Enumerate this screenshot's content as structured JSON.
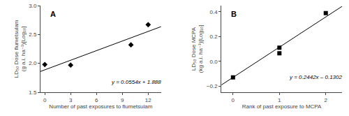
{
  "chart_data": [
    {
      "type": "scatter",
      "title": "A",
      "x_label": "Number of past exposures to flumetsulam",
      "y_label": "LD₅₀ Dose flumetsulam\n(g a.i. ha⁻¹)[Log₁₀]",
      "xlim": [
        -0.5,
        13.5
      ],
      "ylim": [
        1.5,
        3.0
      ],
      "xticks": [
        0,
        3,
        6,
        9,
        12
      ],
      "yticks": [
        1.5,
        {
          "value": 2.0,
          "label": "2.0"
        },
        2.5,
        {
          "value": 3.0,
          "label": "3.0"
        }
      ],
      "grid": false,
      "series": [
        {
          "type": "line",
          "line_style": "solid",
          "color": "#000000",
          "x": [
            -0.5,
            13.5
          ],
          "values": [
            1.8603,
            2.6359
          ]
        },
        {
          "type": "scatter",
          "marker": "diamond",
          "color": "#000000",
          "x": [
            0,
            3,
            10,
            12
          ],
          "values": [
            1.98,
            1.97,
            2.32,
            2.67
          ]
        }
      ],
      "annotations": [
        {
          "text": "y = 0.0554x + 1.888",
          "x": 7.5,
          "y": 1.76
        }
      ]
    },
    {
      "type": "scatter",
      "title": "B",
      "x_label": "Rank of past exposure to MCPA",
      "y_label": "LD₅₀ Dose MCPA\n(kg a.i. ha⁻¹)[Log₁₀]",
      "xlim": [
        -0.25,
        2.35
      ],
      "ylim": [
        -0.25,
        0.45
      ],
      "xticks": [
        0,
        1,
        2
      ],
      "yticks": [
        -0.2,
        {
          "value": 0.0,
          "label": "0.0"
        },
        0.2,
        0.4
      ],
      "grid": false,
      "series": [
        {
          "type": "line",
          "line_style": "solid",
          "color": "#000000",
          "x": [
            -0.25,
            2.35
          ],
          "values": [
            -0.19125,
            0.44367
          ]
        },
        {
          "type": "scatter",
          "marker": "square",
          "color": "#000000",
          "x": [
            0,
            1,
            1,
            2
          ],
          "values": [
            -0.13,
            0.11,
            0.065,
            0.39
          ]
        }
      ],
      "annotations": [
        {
          "text": "y = 0.2442x – 0.1302",
          "x": 1.18,
          "y": -0.09
        }
      ]
    }
  ]
}
